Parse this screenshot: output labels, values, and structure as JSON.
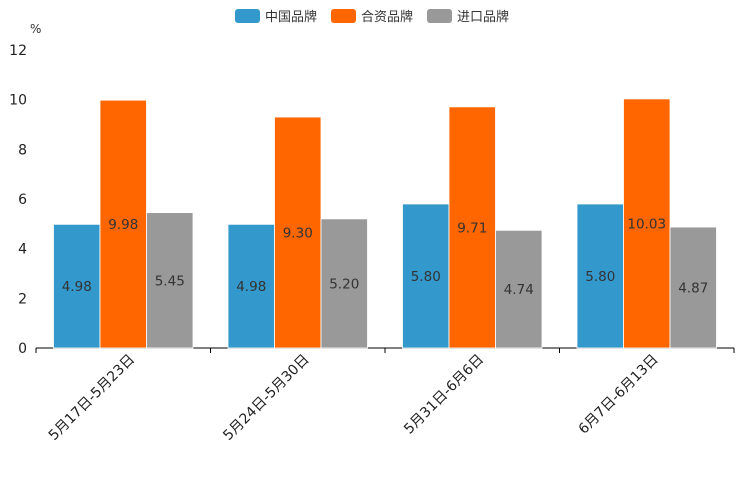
{
  "chart_data": {
    "type": "bar",
    "title": "",
    "ylabel": "%",
    "xlabel": "",
    "ylim": [
      0,
      12
    ],
    "yticks": [
      0,
      2,
      4,
      6,
      8,
      10,
      12
    ],
    "ytick_labels": [
      "0",
      "2",
      "4",
      "6",
      "8",
      "10",
      "12"
    ],
    "categories": [
      "5月17日-5月23日",
      "5月24日-5月30日",
      "5月31日-6月6日",
      "6月7日-6月13日"
    ],
    "series": [
      {
        "name": "中国品牌",
        "color": "#3399cc",
        "values": [
          4.98,
          4.98,
          5.8,
          5.8
        ],
        "labels": [
          "4.98",
          "4.98",
          "5.80",
          "5.80"
        ]
      },
      {
        "name": "合资品牌",
        "color": "#ff6600",
        "values": [
          9.98,
          9.3,
          9.71,
          10.03
        ],
        "labels": [
          "9.98",
          "9.30",
          "9.71",
          "10.03"
        ]
      },
      {
        "name": "进口品牌",
        "color": "#999999",
        "values": [
          5.45,
          5.2,
          4.74,
          4.87
        ],
        "labels": [
          "5.45",
          "5.20",
          "4.74",
          "4.87"
        ]
      }
    ],
    "legend_position": "top-center",
    "grid": false
  }
}
